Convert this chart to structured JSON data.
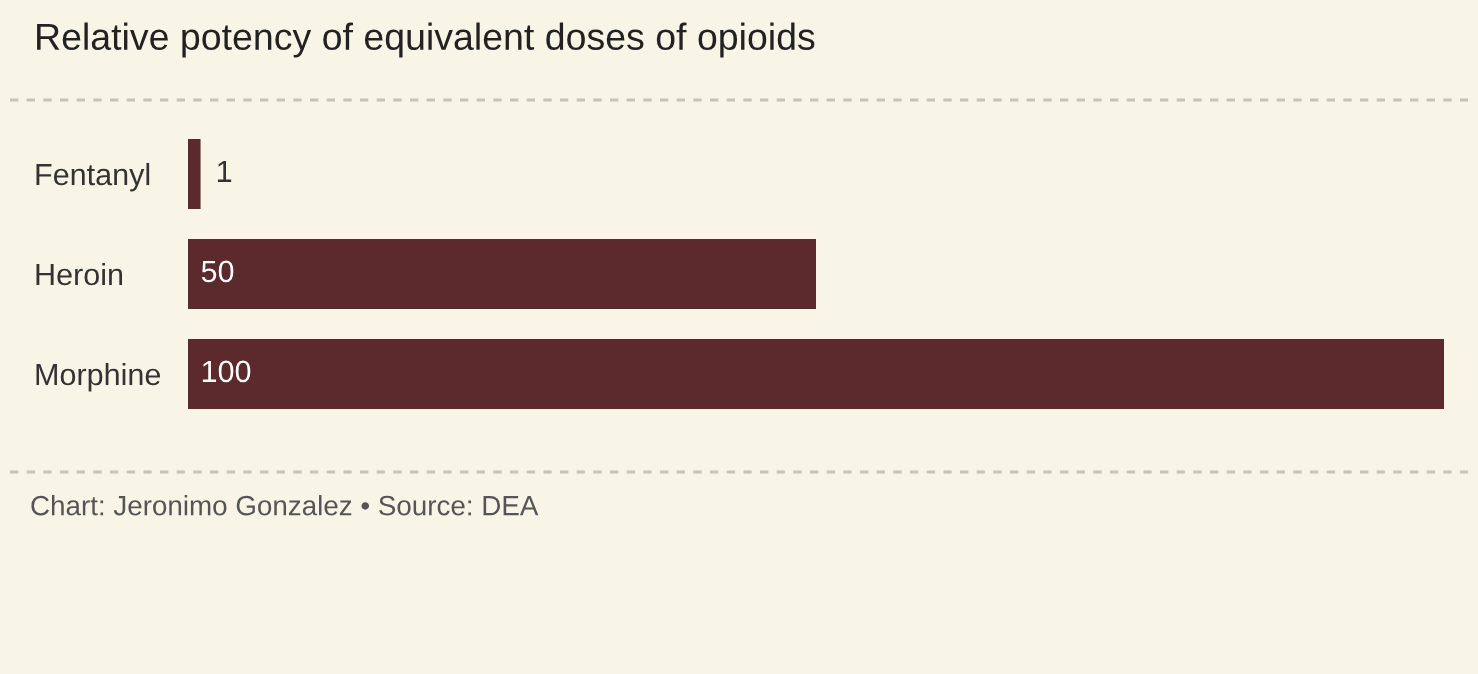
{
  "chart_data": {
    "type": "bar",
    "orientation": "horizontal",
    "title": "Relative potency of equivalent doses of opioids",
    "categories": [
      "Fentanyl",
      "Heroin",
      "Morphine"
    ],
    "values": [
      1,
      50,
      100
    ],
    "color": "#5c2a2c",
    "data_labels": true,
    "tick_labels": "y",
    "grid": false,
    "annotations": [
      "Chart: Jeronimo Gonzalez • Source: DEA"
    ]
  }
}
